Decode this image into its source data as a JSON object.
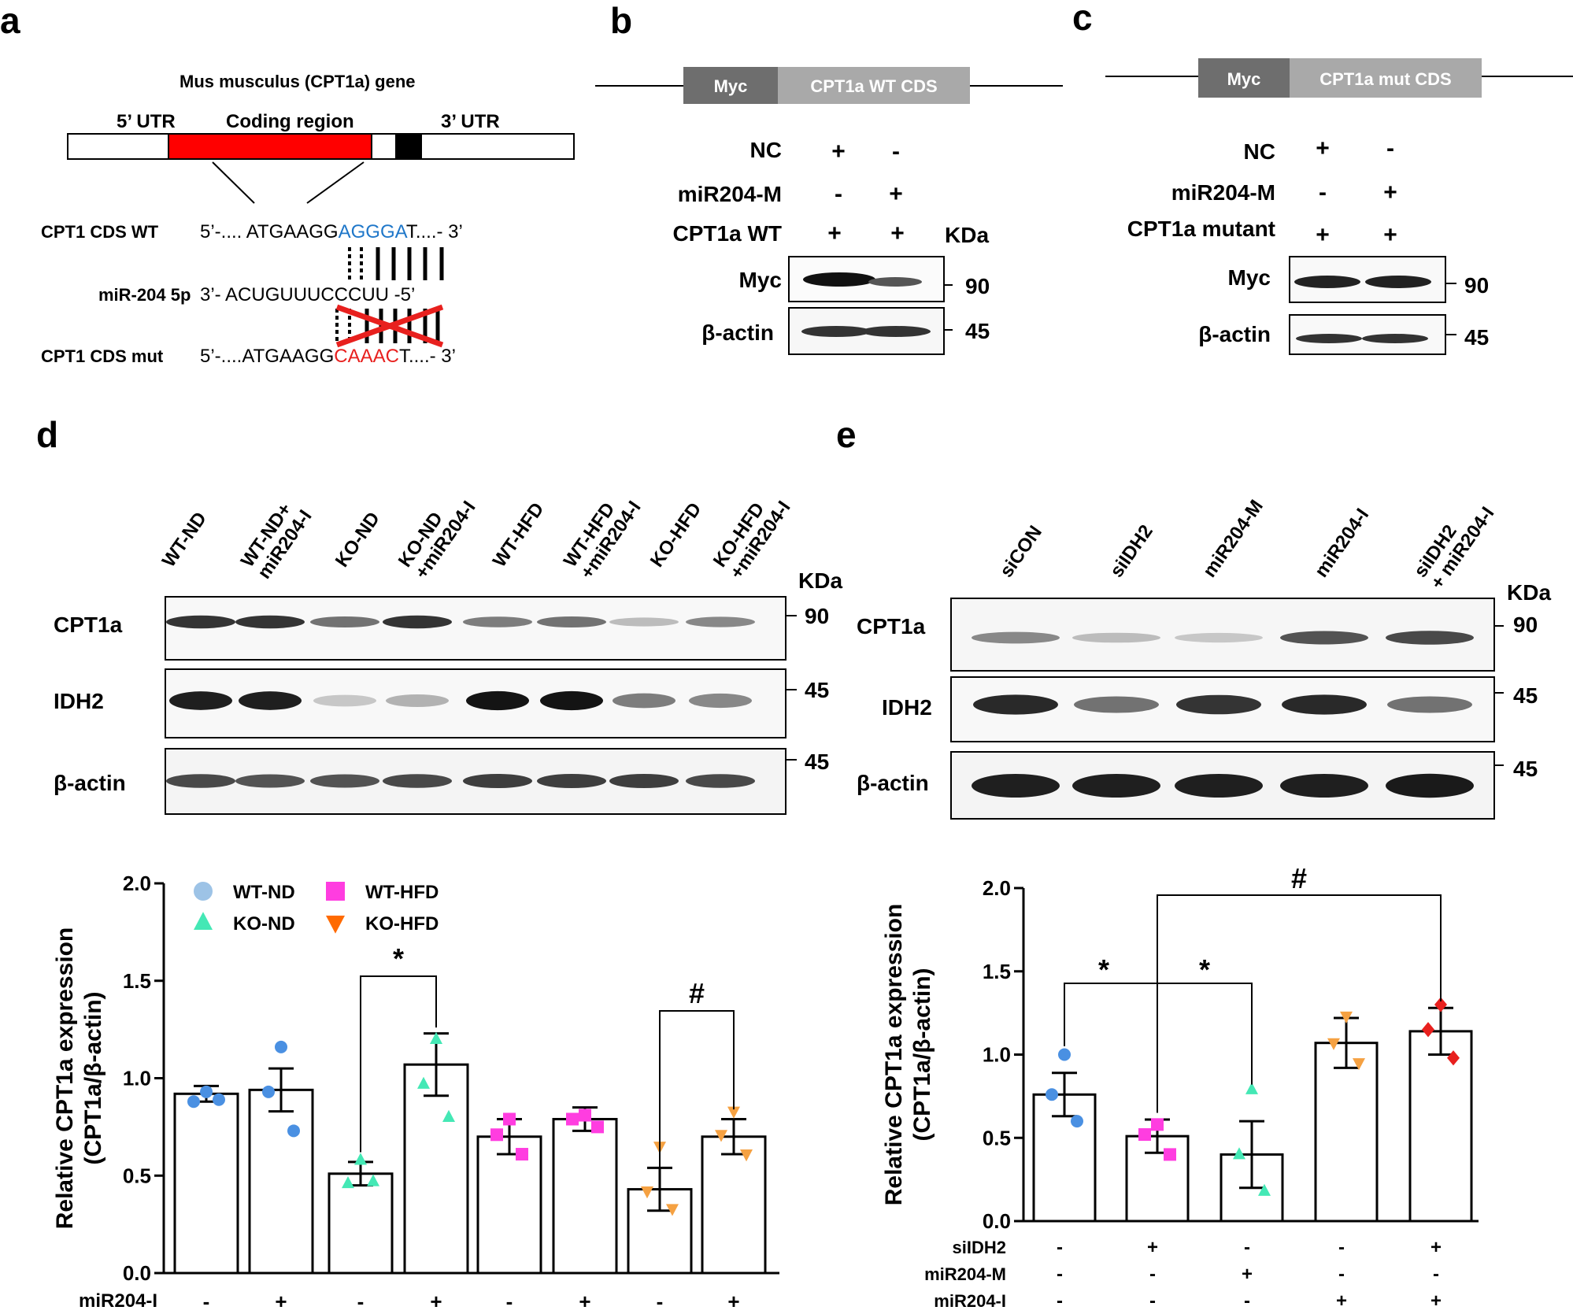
{
  "panels": {
    "a": "a",
    "b": "b",
    "c": "c",
    "d": "d",
    "e": "e"
  },
  "panel_a": {
    "gene_title": "Mus musculus (CPT1a) gene",
    "utr5": "5’ UTR",
    "coding": "Coding region",
    "utr3": "3’ UTR",
    "wt_label": "CPT1 CDS WT",
    "wt_prefix": "5’-.... ATGAAGG",
    "wt_site": "AGGGA",
    "wt_suffix": "T....- 3’",
    "mir_label": "miR-204 5p",
    "mir_prefix": "3’- ",
    "mir_seq": "ACUGUUUCCCUU",
    "mir_suffix": " -5’",
    "mut_label": "CPT1 CDS mut",
    "mut_prefix": "5’-....ATGAAGG",
    "mut_site": "CAAAC",
    "mut_suffix": "T....- 3’",
    "colors": {
      "coding": "#ff0000",
      "site_wt": "#1f77c9",
      "site_mut": "#e8201e"
    }
  },
  "panel_b": {
    "construct_tag": "Myc",
    "construct_cds": "CPT1a WT CDS",
    "rows": [
      {
        "label": "NC",
        "values": [
          "+",
          "-"
        ]
      },
      {
        "label": "miR204-M",
        "values": [
          "-",
          "+"
        ]
      },
      {
        "label": "CPT1a WT",
        "values": [
          "+",
          "+"
        ]
      }
    ],
    "kda": "KDa",
    "blots": [
      {
        "label": "Myc",
        "mw": "90"
      },
      {
        "label": "β-actin",
        "mw": "45"
      }
    ]
  },
  "panel_c": {
    "construct_tag": "Myc",
    "construct_cds": "CPT1a mut CDS",
    "rows": [
      {
        "label": "NC",
        "values": [
          "+",
          "-"
        ]
      },
      {
        "label": "miR204-M",
        "values": [
          "-",
          "+"
        ]
      },
      {
        "label": "CPT1a mutant",
        "values": [
          "+",
          "+"
        ]
      }
    ],
    "blots": [
      {
        "label": "Myc",
        "mw": "90"
      },
      {
        "label": "β-actin",
        "mw": "45"
      }
    ]
  },
  "panel_d": {
    "lanes": [
      [
        "WT-ND"
      ],
      [
        "WT-ND+",
        "miR204-I"
      ],
      [
        "KO-ND"
      ],
      [
        "KO-ND",
        "+miR204-I"
      ],
      [
        "WT-HFD"
      ],
      [
        "WT-HFD",
        "+miR204-I"
      ],
      [
        "KO-HFD"
      ],
      [
        "KO-HFD",
        "+miR204-I"
      ]
    ],
    "kda": "KDa",
    "blots": [
      {
        "label": "CPT1a",
        "mw": "90"
      },
      {
        "label": "IDH2",
        "mw": "45"
      },
      {
        "label": "β-actin",
        "mw": "45"
      }
    ],
    "legend": [
      {
        "name": "WT-ND",
        "shape": "circle",
        "color": "#9dc3e6"
      },
      {
        "name": "WT-HFD",
        "shape": "square",
        "color": "#ff3de0"
      },
      {
        "name": "KO-ND",
        "shape": "triangle",
        "color": "#44e8b5"
      },
      {
        "name": "KO-HFD",
        "shape": "triangle-down",
        "color": "#ff6a00"
      }
    ],
    "treatment_label": "miR204-I",
    "treatment": [
      "-",
      "+",
      "-",
      "+",
      "-",
      "+",
      "-",
      "+"
    ],
    "sig": [
      {
        "text": "*",
        "from": 2,
        "to": 3
      },
      {
        "text": "#",
        "from": 6,
        "to": 7
      }
    ]
  },
  "panel_e": {
    "lanes": [
      [
        "siCON"
      ],
      [
        "siIDH2"
      ],
      [
        "miR204-M"
      ],
      [
        "miR204-I"
      ],
      [
        "siIDH2",
        "+ miR204-I"
      ]
    ],
    "kda": "KDa",
    "blots": [
      {
        "label": "CPT1a",
        "mw": "90"
      },
      {
        "label": "IDH2",
        "mw": "45"
      },
      {
        "label": "β-actin",
        "mw": "45"
      }
    ],
    "treatment_rows": [
      {
        "label": "siIDH2",
        "values": [
          "-",
          "+",
          "-",
          "-",
          "+"
        ]
      },
      {
        "label": "miR204-M",
        "values": [
          "-",
          "-",
          "+",
          "-",
          "-"
        ]
      },
      {
        "label": "miR204-I",
        "values": [
          "-",
          "-",
          "-",
          "+",
          "+"
        ]
      }
    ],
    "sig": [
      {
        "text": "*",
        "from": 0,
        "to": 2
      },
      {
        "text": "#",
        "from": 1,
        "to": 4
      }
    ]
  },
  "chart_data": [
    {
      "type": "bar",
      "ylabel": "Relative CPT1a expression\n(CPT1a/β-actin)",
      "ylim": [
        0,
        2.0
      ],
      "yticks": [
        "0.0",
        "0.5",
        "1.0",
        "1.5",
        "2.0"
      ],
      "values": [
        0.92,
        0.94,
        0.51,
        1.07,
        0.7,
        0.79,
        0.43,
        0.7
      ],
      "errors": [
        0.04,
        0.11,
        0.06,
        0.16,
        0.09,
        0.06,
        0.11,
        0.09
      ],
      "groups": [
        "WT-ND",
        "WT-ND",
        "KO-ND",
        "KO-ND",
        "WT-HFD",
        "WT-HFD",
        "KO-HFD",
        "KO-HFD"
      ],
      "points": [
        [
          0.93,
          0.88,
          0.89
        ],
        [
          1.16,
          0.93,
          0.73
        ],
        [
          0.58,
          0.46,
          0.47
        ],
        [
          1.2,
          0.97,
          0.8
        ],
        [
          0.79,
          0.71,
          0.61
        ],
        [
          0.81,
          0.79,
          0.75
        ],
        [
          0.65,
          0.42,
          0.33
        ],
        [
          0.83,
          0.71,
          0.61
        ]
      ]
    },
    {
      "type": "bar",
      "ylabel": "Relative CPT1a expression\n(CPT1a/β-actin)",
      "ylim": [
        0,
        2.0
      ],
      "yticks": [
        "0.0",
        "0.5",
        "1.0",
        "1.5",
        "2.0"
      ],
      "values": [
        0.76,
        0.51,
        0.4,
        1.07,
        1.14
      ],
      "errors": [
        0.13,
        0.1,
        0.2,
        0.15,
        0.14
      ],
      "points": [
        [
          1.0,
          0.76,
          0.6
        ],
        [
          0.58,
          0.52,
          0.4
        ],
        [
          0.79,
          0.4,
          0.18
        ],
        [
          1.23,
          1.07,
          0.95
        ],
        [
          1.3,
          1.15,
          0.98
        ]
      ],
      "colors": [
        "#4a90e2",
        "#ff3de0",
        "#44e8b5",
        "#f5a142",
        "#e8201e"
      ],
      "shapes": [
        "circle",
        "square",
        "triangle",
        "triangle-down",
        "diamond"
      ]
    }
  ]
}
